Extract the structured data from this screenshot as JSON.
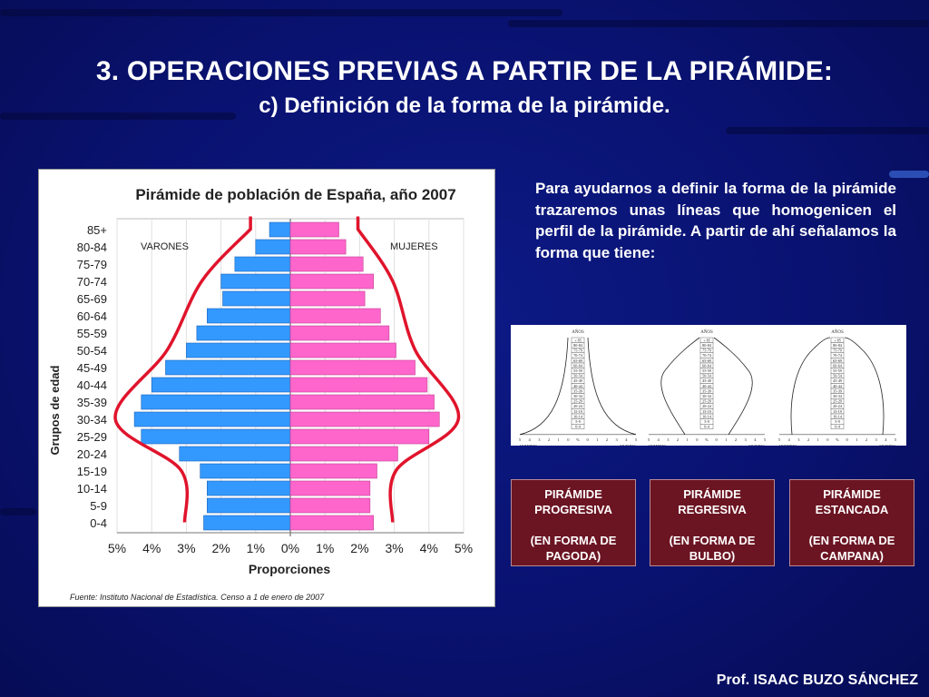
{
  "slide": {
    "title": "3. OPERACIONES PREVIAS A PARTIR DE LA PIRÁMIDE:",
    "subtitle": "c) Definición de la forma de la pirámide.",
    "description": "Para ayudarnos a definir la forma de la pirámide trazaremos unas líneas que homogenicen el perfil de la pirámide. A partir de ahí señalamos la forma que tiene:",
    "author": "Prof. ISAAC BUZO SÁNCHEZ"
  },
  "chart_data": {
    "type": "bar",
    "orientation": "horizontal-pyramid",
    "title": "Pirámide de población de España, año 2007",
    "xlabel": "Proporciones",
    "ylabel": "Grupos de edad",
    "source": "Fuente: Instituto Nacional de Estadística. Censo a 1 de enero de 2007",
    "categories": [
      "85+",
      "80-84",
      "75-79",
      "70-74",
      "65-69",
      "60-64",
      "55-59",
      "50-54",
      "45-49",
      "40-44",
      "35-39",
      "30-34",
      "25-29",
      "20-24",
      "15-19",
      "10-14",
      "5-9",
      "0-4"
    ],
    "xticks": [
      "5%",
      "4%",
      "3%",
      "2%",
      "1%",
      "0%",
      "1%",
      "2%",
      "3%",
      "4%",
      "5%"
    ],
    "xlim": [
      -5,
      5
    ],
    "series": [
      {
        "name": "VARONES",
        "color": "#3399ff",
        "values": [
          0.6,
          1.0,
          1.6,
          2.0,
          1.95,
          2.4,
          2.7,
          3.0,
          3.6,
          4.0,
          4.3,
          4.5,
          4.3,
          3.2,
          2.6,
          2.4,
          2.4,
          2.5
        ]
      },
      {
        "name": "MUJERES",
        "color": "#ff66cc",
        "values": [
          1.4,
          1.6,
          2.1,
          2.4,
          2.15,
          2.6,
          2.85,
          3.05,
          3.6,
          3.95,
          4.15,
          4.3,
          4.0,
          3.1,
          2.5,
          2.3,
          2.3,
          2.4
        ]
      }
    ],
    "outline_color": "#e0142c"
  },
  "thumbnails": {
    "age_label": "AÑOS",
    "left_label": "HOMBRES",
    "right_label": "MUJERES",
    "ages": [
      "+ 85",
      "80-84",
      "75-79",
      "70-74",
      "65-69",
      "60-64",
      "55-59",
      "50-54",
      "45-49",
      "40-44",
      "35-39",
      "30-34",
      "25-29",
      "20-24",
      "15-19",
      "10-14",
      "5-9",
      "0-4"
    ],
    "axis_ticks": [
      "5",
      "4",
      "3",
      "2",
      "1",
      "0",
      "%",
      "0",
      "1",
      "2",
      "3",
      "4",
      "5"
    ]
  },
  "cards": [
    {
      "line1": "PIRÁMIDE",
      "line2": "PROGRESIVA",
      "line3": "(EN FORMA DE",
      "line4": "PAGODA)"
    },
    {
      "line1": "PIRÁMIDE",
      "line2": "REGRESIVA",
      "line3": "(EN FORMA DE",
      "line4": "BULBO)"
    },
    {
      "line1": "PIRÁMIDE",
      "line2": "ESTANCADA",
      "line3": "(EN FORMA DE",
      "line4": "CAMPANA)"
    }
  ]
}
